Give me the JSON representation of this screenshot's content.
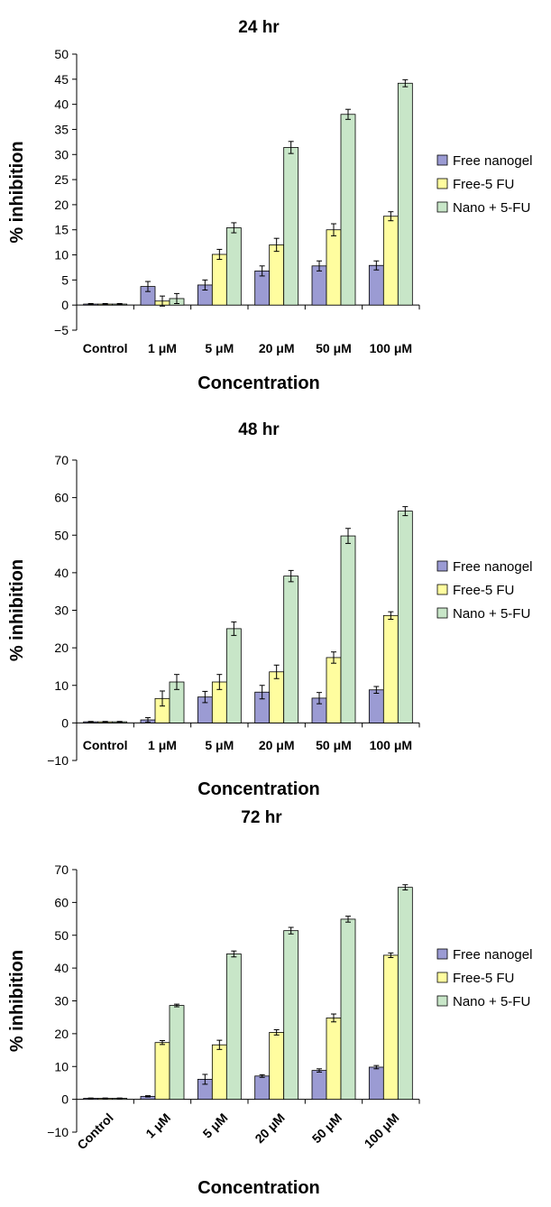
{
  "chart_data": [
    {
      "type": "bar",
      "title": "24 hr",
      "xlabel": "Concentration",
      "ylabel": "% inhibition",
      "ylim": [
        -5,
        50
      ],
      "ytick_step": 5,
      "categories": [
        "Control",
        "1 μM",
        "5 μM",
        "20 μM",
        "50 μM",
        "100 μM"
      ],
      "rotated_ticks": false,
      "legend": "right",
      "series": [
        {
          "name": "Free nanogel",
          "color": "#9b9bd3",
          "values": [
            0.2,
            3.7,
            4.0,
            6.8,
            7.8,
            7.9
          ],
          "errors": [
            0.1,
            1.0,
            1.0,
            1.0,
            1.0,
            0.9
          ]
        },
        {
          "name": "Free-5 FU",
          "color": "#fffd9f",
          "values": [
            0.2,
            0.8,
            10.1,
            12.0,
            15.0,
            17.7
          ],
          "errors": [
            0.1,
            1.0,
            1.0,
            1.3,
            1.2,
            0.9
          ]
        },
        {
          "name": "Nano + 5-FU",
          "color": "#c8e6c8",
          "values": [
            0.2,
            1.3,
            15.4,
            31.4,
            38.0,
            44.2
          ],
          "errors": [
            0.1,
            1.0,
            1.0,
            1.2,
            1.0,
            0.7
          ]
        }
      ]
    },
    {
      "type": "bar",
      "title": "48 hr",
      "xlabel": "Concentration",
      "ylabel": "% inhibition",
      "ylim": [
        -10,
        70
      ],
      "ytick_step": 10,
      "categories": [
        "Control",
        "1 μM",
        "5 μM",
        "20 μM",
        "50 μM",
        "100 μM"
      ],
      "rotated_ticks": false,
      "legend": "right",
      "series": [
        {
          "name": "Free nanogel",
          "color": "#9b9bd3",
          "values": [
            0.3,
            0.8,
            6.9,
            8.2,
            6.6,
            8.8
          ],
          "errors": [
            0.1,
            0.6,
            1.5,
            1.8,
            1.5,
            0.9
          ]
        },
        {
          "name": "Free-5 FU",
          "color": "#fffd9f",
          "values": [
            0.3,
            6.5,
            10.9,
            13.6,
            17.4,
            28.6
          ],
          "errors": [
            0.1,
            2.0,
            2.0,
            1.8,
            1.5,
            1.0
          ]
        },
        {
          "name": "Nano + 5-FU",
          "color": "#c8e6c8",
          "values": [
            0.3,
            10.9,
            25.1,
            39.1,
            49.8,
            56.4
          ],
          "errors": [
            0.1,
            2.0,
            1.8,
            1.5,
            2.0,
            1.2
          ]
        }
      ]
    },
    {
      "type": "bar",
      "title": "",
      "xlabel": "Concentration",
      "ylabel": "% inhibition",
      "ylim": [
        -10,
        70
      ],
      "ytick_step": 10,
      "categories": [
        "Control",
        "1 μM",
        "5 μM",
        "20 μM",
        "50 μM",
        "100 μM"
      ],
      "rotated_ticks": true,
      "legend": "right",
      "series": [
        {
          "name": "Free nanogel",
          "color": "#9b9bd3",
          "values": [
            0.3,
            0.9,
            6.1,
            7.1,
            8.8,
            9.8
          ],
          "errors": [
            0.1,
            0.2,
            1.5,
            0.4,
            0.5,
            0.5
          ]
        },
        {
          "name": "Free-5 FU",
          "color": "#fffd9f",
          "values": [
            0.3,
            17.3,
            16.6,
            20.4,
            24.8,
            43.9
          ],
          "errors": [
            0.1,
            0.6,
            1.4,
            0.8,
            1.2,
            0.7
          ]
        },
        {
          "name": "Nano + 5-FU",
          "color": "#c8e6c8",
          "values": [
            0.3,
            28.6,
            44.3,
            51.4,
            54.9,
            64.6
          ],
          "errors": [
            0.1,
            0.4,
            0.9,
            1.0,
            0.9,
            0.8
          ]
        }
      ]
    }
  ],
  "captions": {
    "between_2_3": "72 hr"
  }
}
